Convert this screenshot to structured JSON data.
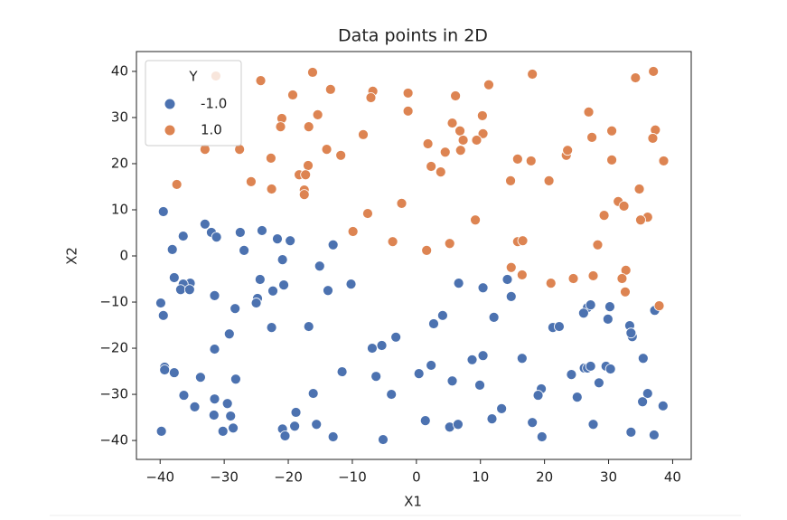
{
  "chart_data": {
    "type": "scatter",
    "title": "Data points in 2D",
    "x_label": "X1",
    "y_label": "X2",
    "legend_title": "Y",
    "legend": "upper left",
    "grid": false,
    "xlim": [
      -43.7,
      42.9
    ],
    "ylim": [
      -44.1,
      44.3
    ],
    "xticks": [
      {
        "value": -40,
        "label": "−40"
      },
      {
        "value": -30,
        "label": "−30"
      },
      {
        "value": -20,
        "label": "−20"
      },
      {
        "value": -10,
        "label": "−10"
      },
      0,
      10,
      20,
      30,
      40
    ],
    "yticks": [
      {
        "value": -40,
        "label": "−40"
      },
      {
        "value": -30,
        "label": "−30"
      },
      {
        "value": -20,
        "label": "−20"
      },
      {
        "value": -10,
        "label": "−10"
      },
      0,
      10,
      20,
      30,
      40
    ],
    "series": [
      {
        "name": "-1.0",
        "color": "#4c72b0",
        "x": [
          -39.5,
          -33.0,
          -32.0,
          -31.2,
          -27.5,
          -24.1,
          -21.7,
          -19.7,
          -13.0,
          -38.1,
          -36.4,
          -26.9,
          -20.9,
          -15.1,
          -37.8,
          -35.3,
          -36.4,
          -36.8,
          -35.4,
          -24.4,
          -20.7,
          -22.4,
          -13.8,
          -10.2,
          -31.5,
          -24.8,
          -25.0,
          -28.3,
          -39.9,
          -39.5,
          -22.6,
          -16.8,
          -31.5,
          -29.2,
          6.6,
          10.4,
          14.8,
          14.2,
          12.1,
          4.1,
          2.7,
          -3.2,
          -5.4,
          -6.9,
          21.3,
          22.3,
          26.7,
          27.2,
          26.1,
          30.2,
          29.9,
          37.2,
          33.3,
          33.7,
          33.5,
          -11.6,
          -6.3,
          -3.9,
          0.4,
          2.3,
          5.6,
          10.4,
          8.7,
          9.9,
          16.5,
          19.5,
          19.0,
          24.2,
          26.2,
          26.7,
          27.2,
          28.5,
          29.6,
          30.3,
          35.4,
          25.1,
          36.1,
          35.3,
          -39.3,
          -39.3,
          -37.8,
          -33.7,
          -28.2,
          -36.3,
          -31.5,
          -29.5,
          -34.6,
          -31.6,
          -29.0,
          -16.1,
          -18.8,
          -15.6,
          -19.0,
          -20.9,
          -20.5,
          -13.0,
          -5.2,
          -28.6,
          -30.2,
          -39.8,
          1.4,
          5.2,
          6.5,
          11.8,
          13.3,
          18.1,
          19.6,
          27.6,
          33.5,
          37.1,
          38.5
        ],
        "values": [
          9.6,
          6.9,
          5.1,
          4.1,
          5.1,
          5.5,
          3.7,
          3.3,
          2.4,
          1.4,
          4.3,
          1.2,
          -0.8,
          -2.2,
          -4.7,
          -5.9,
          -6.1,
          -7.3,
          -7.3,
          -5.1,
          -6.3,
          -7.6,
          -7.5,
          -6.1,
          -8.6,
          -9.2,
          -10.2,
          -11.4,
          -10.2,
          -12.9,
          -15.5,
          -15.3,
          -20.2,
          -16.9,
          -5.9,
          -6.9,
          -8.8,
          -5.1,
          -13.3,
          -12.9,
          -14.7,
          -17.6,
          -19.4,
          -20.0,
          -15.5,
          -15.3,
          -11.2,
          -10.6,
          -12.4,
          -11.0,
          -13.7,
          -11.8,
          -15.1,
          -17.5,
          -16.7,
          -25.1,
          -26.1,
          -30.0,
          -25.5,
          -23.7,
          -27.1,
          -21.6,
          -22.5,
          -28.0,
          -22.2,
          -28.8,
          -30.2,
          -25.7,
          -24.3,
          -24.3,
          -23.9,
          -27.5,
          -23.9,
          -24.5,
          -22.2,
          -30.6,
          -29.8,
          -31.6,
          -24.1,
          -24.7,
          -25.3,
          -26.3,
          -26.7,
          -30.2,
          -31.0,
          -32.0,
          -32.7,
          -34.5,
          -34.7,
          -29.8,
          -33.9,
          -36.5,
          -36.9,
          -37.5,
          -39.0,
          -39.2,
          -39.8,
          -37.3,
          -38.0,
          -38.0,
          -35.7,
          -37.1,
          -36.5,
          -35.3,
          -33.1,
          -36.1,
          -39.2,
          -36.5,
          -38.2,
          -38.8,
          -32.5
        ]
      },
      {
        "name": "1.0",
        "color": "#dd8452",
        "x": [
          -31.3,
          -24.3,
          -16.2,
          -19.3,
          -13.4,
          -6.8,
          -7.1,
          -1.3,
          6.1,
          11.3,
          18.1,
          34.2,
          37.0,
          -21.0,
          -21.2,
          -15.4,
          -16.8,
          -1.3,
          5.6,
          6.8,
          10.3,
          10.4,
          26.9,
          30.5,
          37.3,
          36.9,
          27.4,
          -8.3,
          7.3,
          9.4,
          6.9,
          4.5,
          1.8,
          2.3,
          3.8,
          -14.0,
          -11.8,
          -22.7,
          -27.6,
          -33.0,
          -16.9,
          -18.3,
          -17.3,
          -17.5,
          -17.5,
          -25.8,
          -22.6,
          -37.4,
          15.8,
          17.9,
          23.4,
          23.6,
          30.5,
          38.6,
          14.7,
          20.7,
          34.8,
          31.5,
          32.4,
          -2.3,
          -7.6,
          29.3,
          36.1,
          35.0,
          9.2,
          -9.9,
          -3.7,
          5.2,
          1.6,
          15.8,
          16.6,
          28.3,
          14.8,
          16.5,
          24.5,
          27.6,
          32.7,
          32.1,
          32.6,
          21.0,
          37.9
        ],
        "values": [
          39.0,
          38.0,
          39.8,
          34.9,
          36.1,
          35.7,
          34.3,
          35.3,
          34.7,
          37.1,
          39.4,
          38.6,
          40.0,
          29.8,
          28.0,
          30.6,
          28.0,
          31.4,
          28.8,
          27.1,
          30.4,
          26.5,
          31.2,
          27.1,
          27.3,
          25.5,
          25.7,
          26.3,
          25.1,
          25.1,
          22.9,
          22.5,
          24.3,
          19.4,
          18.2,
          23.1,
          21.8,
          21.2,
          23.1,
          23.1,
          19.6,
          17.6,
          17.6,
          14.3,
          13.3,
          16.1,
          14.5,
          15.5,
          21.0,
          20.6,
          21.8,
          22.9,
          20.8,
          20.6,
          16.3,
          16.3,
          14.5,
          11.8,
          10.8,
          11.4,
          9.2,
          8.8,
          8.4,
          7.8,
          7.8,
          5.3,
          3.1,
          2.7,
          1.2,
          3.1,
          3.3,
          2.4,
          -2.5,
          -4.1,
          -4.9,
          -4.3,
          -3.1,
          -4.9,
          -7.8,
          -5.9,
          -10.8
        ]
      }
    ]
  }
}
